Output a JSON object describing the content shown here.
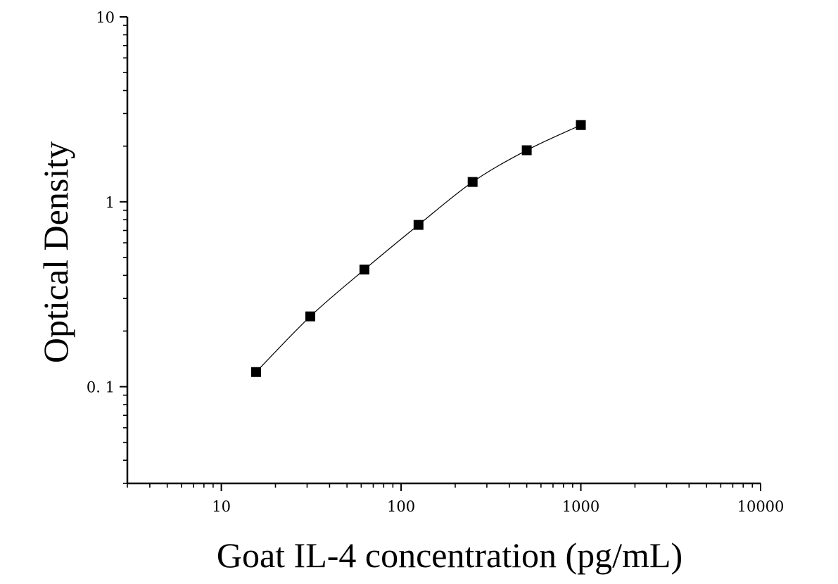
{
  "chart_data": {
    "type": "scatter",
    "xlabel": "Goat IL-4 concentration (pg/mL)",
    "ylabel": "Optical Density",
    "xscale": "log",
    "yscale": "log",
    "xlim": [
      3,
      10000
    ],
    "ylim": [
      0.03,
      10
    ],
    "x_tick_labels": [
      "10",
      "100",
      "1000",
      "10000"
    ],
    "y_tick_labels": [
      "0. 1",
      "1",
      "10"
    ],
    "grid": false,
    "legend": "none",
    "series": [
      {
        "x": [
          15.6,
          31.25,
          62.5,
          125,
          250,
          500,
          1000
        ],
        "y": [
          0.12,
          0.24,
          0.43,
          0.75,
          1.28,
          1.9,
          2.6
        ],
        "marker": "square",
        "fit_line": true
      }
    ],
    "colors": {
      "marker": "#000000",
      "line": "#000000"
    }
  }
}
